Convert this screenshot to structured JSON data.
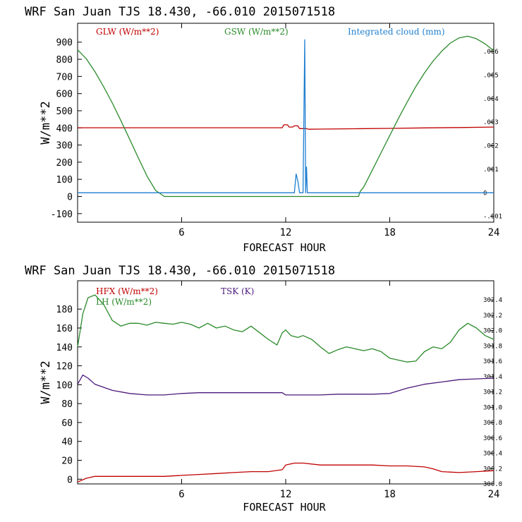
{
  "chart_data": [
    {
      "type": "line",
      "title": "WRF  San Juan TJS  18.430, -66.010  2015071518",
      "xlabel": "FORECAST HOUR",
      "ylabel": "W/m**2",
      "xlim": [
        0,
        24
      ],
      "xticks": [
        "6",
        "12",
        "18",
        "24"
      ],
      "ylim": [
        -150,
        1010
      ],
      "yticks": [
        "-100",
        "0",
        "100",
        "200",
        "300",
        "400",
        "500",
        "600",
        "700",
        "800",
        "900"
      ],
      "y2lim": [
        -0.00125,
        0.0072
      ],
      "y2ticks": [
        ".006",
        ".005",
        ".004",
        ".003",
        ".002",
        ".001",
        "0",
        "-.001"
      ],
      "legend": [
        "GLW (W/m**2)",
        "GSW (W/m**2)",
        "Integrated cloud (mm)"
      ],
      "colors": {
        "GLW": "#c00000",
        "GSW": "#2a8a2a",
        "cloud": "#1f7fd0"
      },
      "series": [
        {
          "name": "GLW (W/m**2)",
          "axis": "left",
          "x": [
            0,
            2,
            4,
            6,
            8,
            10,
            11.8,
            11.9,
            12.1,
            12.2,
            12.4,
            12.5,
            12.7,
            12.8,
            13.2,
            13.3,
            14,
            16,
            18,
            20,
            22,
            24
          ],
          "y": [
            401,
            401,
            401,
            401,
            401,
            401,
            401,
            418,
            418,
            405,
            405,
            412,
            412,
            396,
            396,
            392,
            393,
            395,
            397,
            400,
            402,
            405
          ]
        },
        {
          "name": "GSW (W/m**2)",
          "axis": "left",
          "x": [
            0,
            0.5,
            1,
            1.5,
            2,
            2.5,
            3,
            3.5,
            4,
            4.5,
            5,
            5.5,
            16.2,
            16.3,
            16.5,
            17,
            17.5,
            18,
            18.5,
            19,
            19.5,
            20,
            20.5,
            21,
            21.5,
            22,
            22.5,
            23,
            23.5,
            24
          ],
          "y": [
            855,
            803,
            728,
            640,
            545,
            441,
            334,
            226,
            120,
            35,
            0,
            0,
            0,
            30,
            55,
            155,
            255,
            355,
            455,
            550,
            640,
            720,
            790,
            848,
            895,
            925,
            935,
            920,
            890,
            850
          ]
        },
        {
          "name": "Integrated cloud (mm)",
          "axis": "right",
          "x": [
            0,
            12.5,
            12.6,
            12.7,
            12.8,
            13.0,
            13.1,
            13.15,
            13.2,
            13.25,
            13.3,
            13.35,
            13.4,
            24
          ],
          "y": [
            0,
            0,
            0.0008,
            0.0005,
            0,
            0,
            0.0065,
            0,
            0.0011,
            0,
            0,
            0,
            0,
            0
          ]
        }
      ]
    },
    {
      "type": "line",
      "title": "WRF  San Juan TJS  18.430, -66.010  2015071518",
      "xlabel": "FORECAST HOUR",
      "ylabel": "W/m**2",
      "xlim": [
        0,
        24
      ],
      "xticks": [
        "6",
        "12",
        "18",
        "24"
      ],
      "ylim": [
        -5,
        210
      ],
      "yticks": [
        "0",
        "20",
        "40",
        "60",
        "80",
        "100",
        "120",
        "140",
        "160",
        "180"
      ],
      "y2lim": [
        300.0,
        302.65
      ],
      "y2ticks": [
        "302.4",
        "302.2",
        "302.0",
        "301.8",
        "301.6",
        "301.4",
        "301.2",
        "301.0",
        "300.8",
        "300.6",
        "300.4",
        "300.2",
        "300.0"
      ],
      "legend": [
        "HFX (W/m**2)",
        "LH (W/m**2)",
        "TSK (K)"
      ],
      "colors": {
        "HFX": "#c00000",
        "LH": "#2a8a2a",
        "TSK": "#4b1a7a"
      },
      "series": [
        {
          "name": "HFX (W/m**2)",
          "axis": "left",
          "x": [
            0,
            0.5,
            1,
            1.5,
            2,
            3,
            4,
            5,
            6,
            7,
            8,
            9,
            10,
            11,
            11.8,
            12,
            12.5,
            13,
            14,
            15,
            16,
            17,
            18,
            19,
            20,
            20.5,
            21,
            22,
            23,
            24
          ],
          "y": [
            -3,
            1,
            3,
            3,
            3,
            3,
            3,
            3,
            4,
            5,
            6,
            7,
            8,
            8,
            10,
            15,
            17,
            17,
            15,
            15,
            15,
            15,
            14,
            14,
            13,
            11,
            8,
            7,
            8,
            9
          ]
        },
        {
          "name": "LH (W/m**2)",
          "axis": "left",
          "x": [
            0,
            0.3,
            0.6,
            1,
            1.5,
            2,
            2.5,
            3,
            3.5,
            4,
            4.5,
            5,
            5.5,
            6,
            6.5,
            7,
            7.5,
            8,
            8.5,
            9,
            9.5,
            10,
            10.5,
            11,
            11.5,
            11.8,
            12,
            12.3,
            12.7,
            13,
            13.5,
            14,
            14.5,
            15,
            15.5,
            16,
            16.5,
            17,
            17.5,
            18,
            18.5,
            19,
            19.5,
            20,
            20.5,
            21,
            21.5,
            22,
            22.5,
            23,
            23.5,
            24
          ],
          "y": [
            140,
            175,
            192,
            195,
            185,
            168,
            162,
            165,
            165,
            163,
            166,
            165,
            164,
            166,
            164,
            160,
            165,
            160,
            162,
            158,
            156,
            162,
            155,
            148,
            142,
            155,
            158,
            152,
            150,
            152,
            148,
            140,
            133,
            137,
            140,
            138,
            136,
            138,
            135,
            128,
            126,
            124,
            125,
            135,
            140,
            138,
            145,
            158,
            165,
            160,
            152,
            148
          ]
        },
        {
          "name": "TSK (K)",
          "axis": "right",
          "x": [
            0,
            0.3,
            0.6,
            1,
            2,
            3,
            4,
            5,
            6,
            7,
            8,
            9,
            10,
            11,
            11.8,
            12,
            12.5,
            13,
            14,
            15,
            16,
            17,
            18,
            19,
            20,
            21,
            22,
            23,
            24
          ],
          "y": [
            301.3,
            301.42,
            301.38,
            301.3,
            301.22,
            301.18,
            301.16,
            301.16,
            301.18,
            301.19,
            301.19,
            301.19,
            301.19,
            301.19,
            301.19,
            301.16,
            301.16,
            301.16,
            301.16,
            301.17,
            301.17,
            301.17,
            301.18,
            301.25,
            301.3,
            301.33,
            301.36,
            301.37,
            301.38
          ]
        }
      ]
    }
  ]
}
